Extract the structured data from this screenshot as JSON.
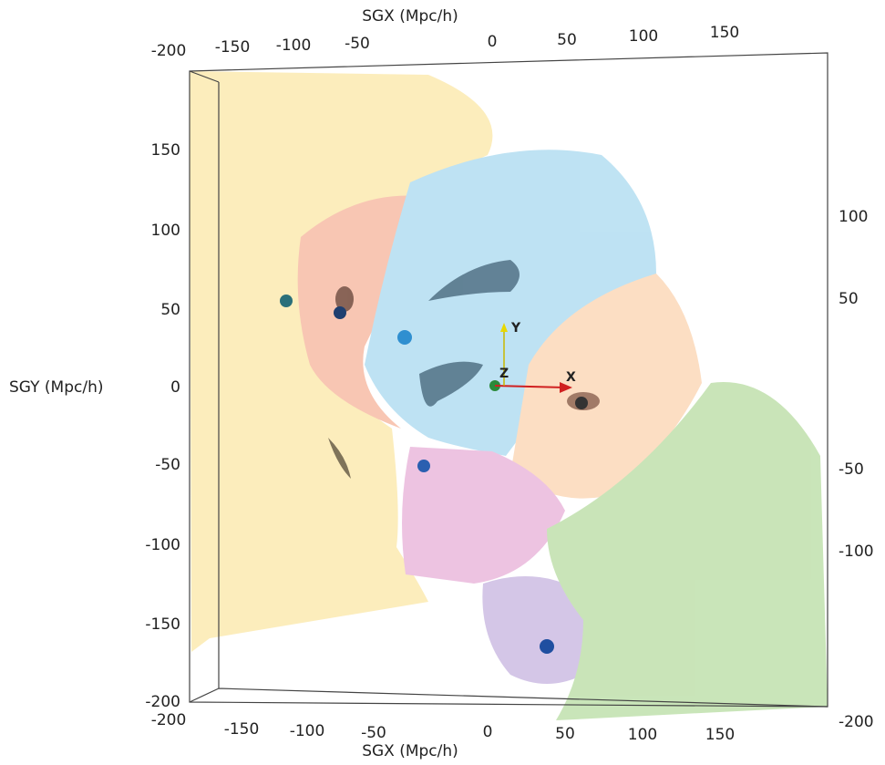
{
  "top_axis": {
    "label": "SGX (Mpc/h)",
    "ticks": [
      -200,
      -150,
      -100,
      -50,
      0,
      50,
      100,
      150
    ]
  },
  "bottom_axis": {
    "label": "SGX (Mpc/h)",
    "ticks": [
      -200,
      -150,
      -100,
      -50,
      0,
      50,
      100,
      150
    ]
  },
  "left_axis": {
    "label": "SGY (Mpc/h)",
    "ticks": [
      150,
      100,
      50,
      0,
      -50,
      -100,
      -150,
      -200
    ]
  },
  "right_axis": {
    "ticks": [
      100,
      50,
      -50,
      -100,
      -200
    ]
  },
  "triad": {
    "x": "X",
    "y": "Y",
    "z": "Z"
  }
}
